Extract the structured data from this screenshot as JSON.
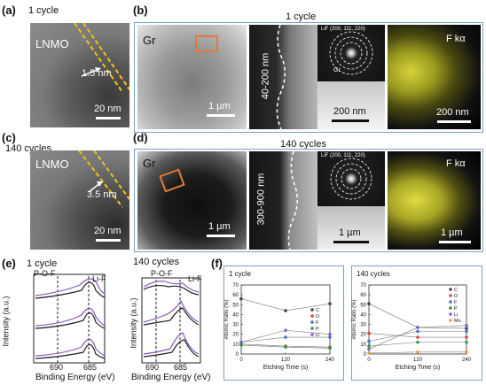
{
  "panels": {
    "a": {
      "label": "(a)",
      "cycle": "1 cycle",
      "material": "LNMO",
      "thickness": "1.5 nm",
      "scale": "20 nm"
    },
    "b": {
      "label": "(b)",
      "title": "1 cycle",
      "material": "Gr",
      "scale_left": "1 µm",
      "range": "40-200 nm",
      "saed": "LiF (200, 111, 220)",
      "gr_tag": "Gr",
      "scale_mid": "200 nm",
      "map": "F kα",
      "scale_right": "200 nm"
    },
    "c": {
      "label": "(c)",
      "cycle": "140 cycles",
      "material": "LNMO",
      "thickness": "3.5 nm",
      "scale": "20 nm"
    },
    "d": {
      "label": "(d)",
      "title": "140 cycles",
      "material": "Gr",
      "scale_left": "1 µm",
      "range": "300-900 nm",
      "saed": "LiF (200, 111, 220)",
      "scale_mid": "1 µm",
      "map": "F kα",
      "scale_right": "1 µm"
    },
    "e": {
      "label": "(e)",
      "left_title": "1 cycle",
      "right_title": "140 cycles",
      "pof": "P-O-F",
      "lif": "Li-F",
      "ylabel": "Intensity (a.u.)",
      "xlabel": "Binding Energy (eV)",
      "ticks_left": [
        "690",
        "685"
      ],
      "ticks_right": [
        "690",
        "685"
      ]
    },
    "f": {
      "label": "(f)"
    }
  },
  "colors": {
    "frame": "#7aa0c8",
    "orange": "#e07b39",
    "yellow": "#f2c21a",
    "purple": "#8a58b8"
  },
  "chart_data": [
    {
      "type": "line",
      "title": "1 cycle",
      "x": [
        0,
        120,
        240
      ],
      "xlabel": "Etching Time (s)",
      "ylabel": "Atomic Ratio (%)",
      "ylim": [
        0,
        70
      ],
      "yticks": [
        "0",
        "10",
        "20",
        "30",
        "40",
        "50",
        "60",
        "70"
      ],
      "xticks": [
        "0",
        "120",
        "240"
      ],
      "legend": "top-right",
      "series": [
        {
          "name": "C",
          "color": "#444444",
          "values": [
            56,
            44,
            51
          ]
        },
        {
          "name": "O",
          "color": "#d64545",
          "values": [
            10,
            8,
            7
          ]
        },
        {
          "name": "F",
          "color": "#4a6ed0",
          "values": [
            12,
            17,
            17
          ]
        },
        {
          "name": "P",
          "color": "#2f9a4a",
          "values": [
            9,
            7,
            6
          ]
        },
        {
          "name": "Li",
          "color": "#8a5cd0",
          "values": [
            12,
            24,
            20
          ]
        }
      ]
    },
    {
      "type": "line",
      "title": "140 cycles",
      "x": [
        0,
        120,
        240
      ],
      "xlabel": "Etching Time (s)",
      "ylabel": "Atomic Ratio (%)",
      "ylim": [
        0,
        70
      ],
      "yticks": [
        "0",
        "10",
        "20",
        "30",
        "40",
        "50",
        "60",
        "70"
      ],
      "xticks": [
        "0",
        "120",
        "240"
      ],
      "legend": "top-right",
      "series": [
        {
          "name": "C",
          "color": "#444444",
          "values": [
            51,
            27,
            26
          ]
        },
        {
          "name": "O",
          "color": "#d64545",
          "values": [
            21,
            17,
            17
          ]
        },
        {
          "name": "F",
          "color": "#4a6ed0",
          "values": [
            13,
            23,
            23
          ]
        },
        {
          "name": "P",
          "color": "#2f9a4a",
          "values": [
            8,
            12,
            12
          ]
        },
        {
          "name": "Li",
          "color": "#8a5cd0",
          "values": [
            5,
            27,
            29
          ]
        },
        {
          "name": "Mn",
          "color": "#e0a030",
          "values": [
            1,
            2,
            2
          ]
        }
      ]
    }
  ]
}
